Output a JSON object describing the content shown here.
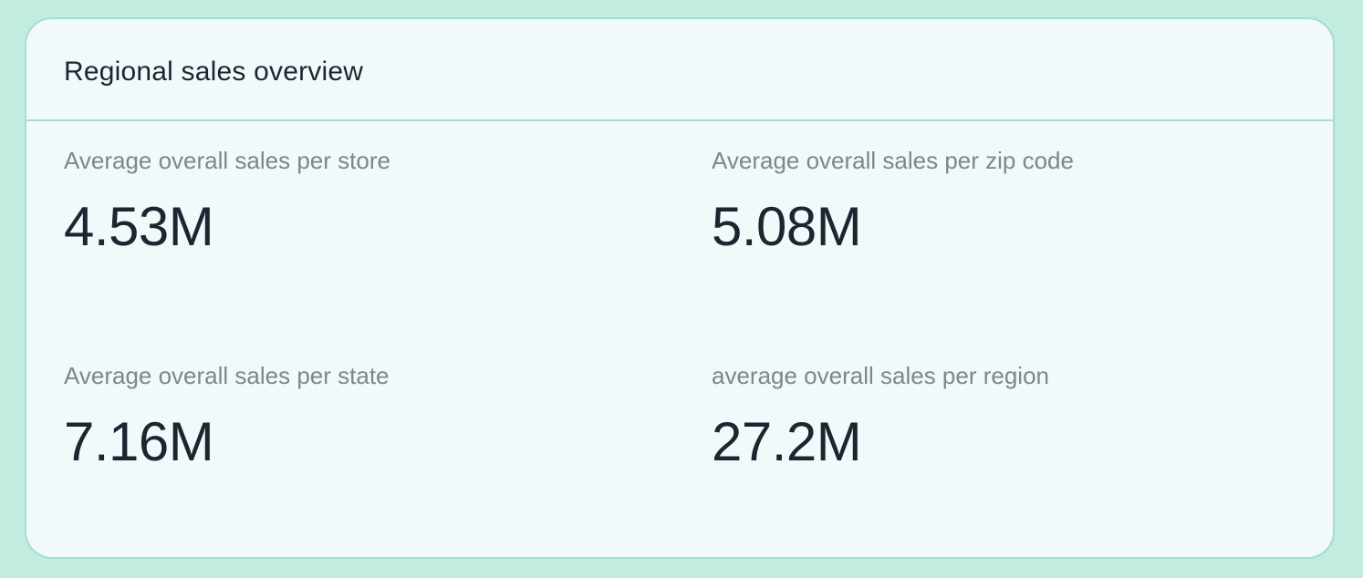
{
  "card": {
    "title": "Regional sales overview",
    "colors": {
      "page_background": "#c3ece1",
      "card_background": "#f1f9fa",
      "card_border": "#a3dfcf",
      "title_text": "#1c2530",
      "label_text": "#7e868e",
      "value_text": "#1c2530"
    }
  },
  "metrics": [
    {
      "label": "Average overall sales per store",
      "value": "4.53M"
    },
    {
      "label": "Average overall sales per zip code",
      "value": "5.08M"
    },
    {
      "label": "Average overall sales per state",
      "value": "7.16M"
    },
    {
      "label": "average overall sales per region",
      "value": "27.2M"
    }
  ]
}
